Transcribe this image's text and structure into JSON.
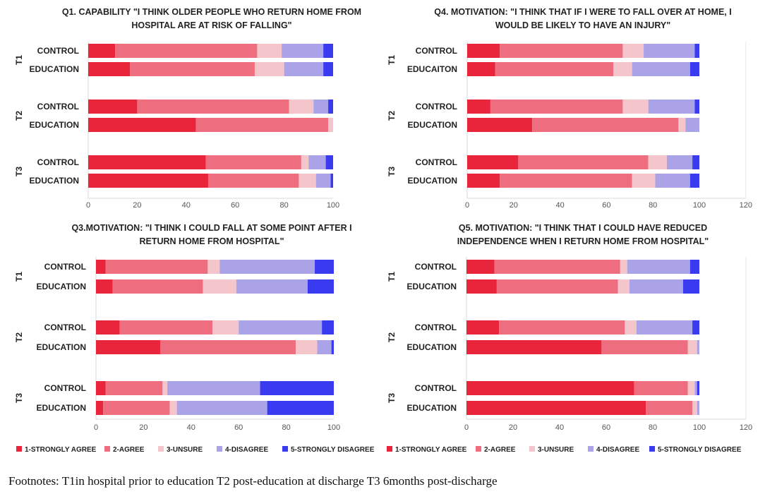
{
  "chart_data": [
    {
      "type": "bar",
      "orientation": "horizontal-stacked",
      "title_lines": [
        "Q1. CAPABILITY \"I THINK OLDER PEOPLE WHO RETURN HOME FROM",
        "HOSPITAL ARE AT RISK OF FALLING\""
      ],
      "groups": [
        {
          "label": "T1",
          "rows": [
            {
              "label": "CONTROL",
              "values": [
                11,
                58,
                10,
                17,
                4
              ]
            },
            {
              "label": "EDUCATION",
              "values": [
                17,
                51,
                12,
                16,
                4
              ]
            }
          ]
        },
        {
          "label": "T2",
          "rows": [
            {
              "label": "CONTROL",
              "values": [
                20,
                62,
                10,
                6,
                2
              ]
            },
            {
              "label": "EDUCATION",
              "values": [
                44,
                54,
                2,
                0,
                0
              ]
            }
          ]
        },
        {
          "label": "T3",
          "rows": [
            {
              "label": "CONTROL",
              "values": [
                48,
                39,
                3,
                7,
                3
              ]
            },
            {
              "label": "EDUCATION",
              "values": [
                49,
                37,
                7,
                6,
                1
              ]
            }
          ]
        }
      ],
      "xlim": [
        0,
        100
      ],
      "xticks": [
        0,
        20,
        40,
        60,
        80,
        100
      ]
    },
    {
      "type": "bar",
      "orientation": "horizontal-stacked",
      "title_lines": [
        "Q4. MOTIVATION: \"I THINK THAT IF I WERE TO FALL OVER AT HOME, I",
        "WOULD BE LIKELY TO HAVE AN INJURY\""
      ],
      "groups": [
        {
          "label": "T1",
          "rows": [
            {
              "label": "CONTROL",
              "values": [
                14,
                53,
                9,
                22,
                2
              ]
            },
            {
              "label": "EDUCAITON",
              "values": [
                12,
                51,
                8,
                25,
                4
              ]
            }
          ]
        },
        {
          "label": "T2",
          "rows": [
            {
              "label": "CONTROL",
              "values": [
                10,
                57,
                11,
                20,
                2
              ]
            },
            {
              "label": "EDUCATION",
              "values": [
                28,
                63,
                3,
                6,
                0
              ]
            }
          ]
        },
        {
          "label": "T3",
          "rows": [
            {
              "label": "CONTROL",
              "values": [
                22,
                56,
                8,
                11,
                3
              ]
            },
            {
              "label": "EDUCATION",
              "values": [
                14,
                57,
                10,
                15,
                4
              ]
            }
          ]
        }
      ],
      "xlim": [
        0,
        120
      ],
      "xticks": [
        0,
        20,
        40,
        60,
        80,
        100,
        120
      ]
    },
    {
      "type": "bar",
      "orientation": "horizontal-stacked",
      "title_lines": [
        "Q3.MOTIVATION: \"I THINK I COULD FALL AT SOME POINT AFTER I",
        "RETURN HOME FROM HOSPITAL\""
      ],
      "groups": [
        {
          "label": "T1",
          "rows": [
            {
              "label": "CONTROL",
              "values": [
                4,
                43,
                5,
                40,
                8
              ]
            },
            {
              "label": "EDUCATION",
              "values": [
                7,
                38,
                14,
                30,
                11
              ]
            }
          ]
        },
        {
          "label": "T2",
          "rows": [
            {
              "label": "CONTROL",
              "values": [
                10,
                39,
                11,
                35,
                5
              ]
            },
            {
              "label": "EDUCATION",
              "values": [
                27,
                57,
                9,
                6,
                1
              ]
            }
          ]
        },
        {
          "label": "T3",
          "rows": [
            {
              "label": "CONTROL",
              "values": [
                4,
                24,
                2,
                39,
                31
              ]
            },
            {
              "label": "EDUCATION",
              "values": [
                3,
                28,
                3,
                38,
                28
              ]
            }
          ]
        }
      ],
      "xlim": [
        0,
        100
      ],
      "xticks": [
        0,
        20,
        40,
        60,
        80,
        100
      ]
    },
    {
      "type": "bar",
      "orientation": "horizontal-stacked",
      "title_lines": [
        "Q5. MOTIVATION: \"I THINK THAT I COULD HAVE REDUCED",
        "INDEPENDENCE WHEN I RETURN HOME FROM HOSPITAL\""
      ],
      "groups": [
        {
          "label": "T1",
          "rows": [
            {
              "label": "CONTROL",
              "values": [
                12,
                54,
                3,
                27,
                4
              ]
            },
            {
              "label": "EDUCATION",
              "values": [
                13,
                52,
                5,
                23,
                7
              ]
            }
          ]
        },
        {
          "label": "T2",
          "rows": [
            {
              "label": "CONTROL",
              "values": [
                14,
                54,
                5,
                24,
                3
              ]
            },
            {
              "label": "EDUCATION",
              "values": [
                58,
                37,
                4,
                1,
                0
              ]
            }
          ]
        },
        {
          "label": "T3",
          "rows": [
            {
              "label": "CONTROL",
              "values": [
                72,
                23,
                3,
                1,
                1
              ]
            },
            {
              "label": "EDUCATION",
              "values": [
                77,
                20,
                2,
                1,
                0
              ]
            }
          ]
        }
      ],
      "xlim": [
        0,
        120
      ],
      "xticks": [
        0,
        20,
        40,
        60,
        80,
        100,
        120
      ]
    }
  ],
  "legend": {
    "placement": "bottom",
    "items": [
      {
        "label": "1-STRONGLY AGREE",
        "color": "#e8253a"
      },
      {
        "label": "2-AGREE",
        "color": "#ee6e80"
      },
      {
        "label": "3-UNSURE",
        "color": "#f4c6cc"
      },
      {
        "label": "4-DISAGREE",
        "color": "#aaa3e8"
      },
      {
        "label": "5-STRONGLY DISAGREE",
        "color": "#3a3af0"
      }
    ]
  },
  "footnote": "Footnotes: T1in hospital prior to education T2 post-education at discharge T3 6months post-discharge"
}
